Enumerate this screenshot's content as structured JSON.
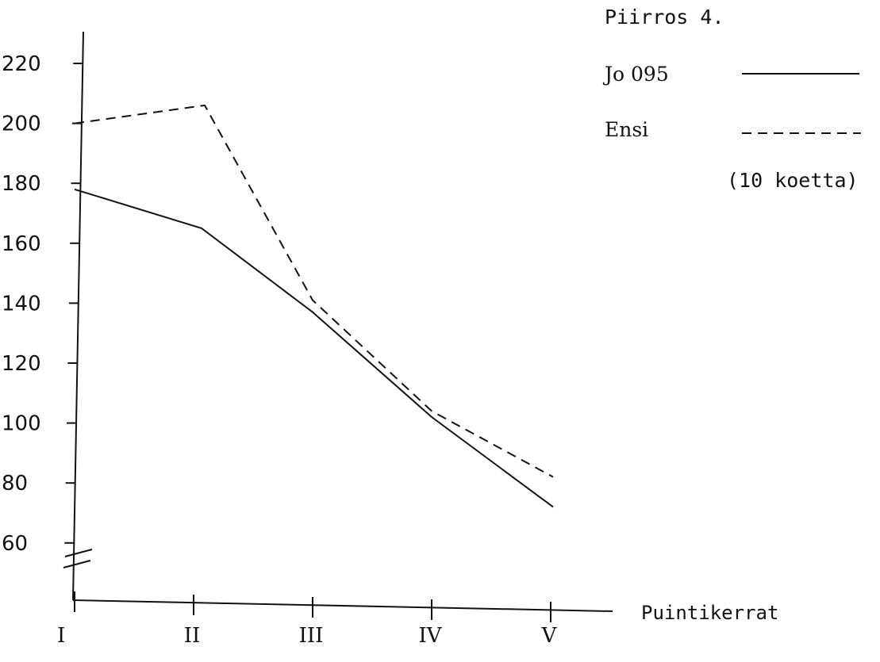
{
  "chart_data": {
    "type": "line",
    "title": "Piirros 4.",
    "note": "(10 koetta)",
    "xlabel": "Puintikerrat",
    "ylabel": "",
    "categories": [
      "I",
      "II",
      "III",
      "IV",
      "V"
    ],
    "yticks": [
      60,
      80,
      100,
      120,
      140,
      160,
      180,
      200,
      220
    ],
    "ylim": [
      60,
      220
    ],
    "y_axis_break": true,
    "grid": false,
    "legend_position": "top-right",
    "series": [
      {
        "name": "Jo 095",
        "style": "solid",
        "color": "#111111",
        "values": [
          178,
          165,
          137,
          102,
          72
        ]
      },
      {
        "name": "Ensi",
        "style": "dashed",
        "color": "#111111",
        "values": [
          200,
          206,
          141,
          104,
          82
        ]
      }
    ]
  }
}
